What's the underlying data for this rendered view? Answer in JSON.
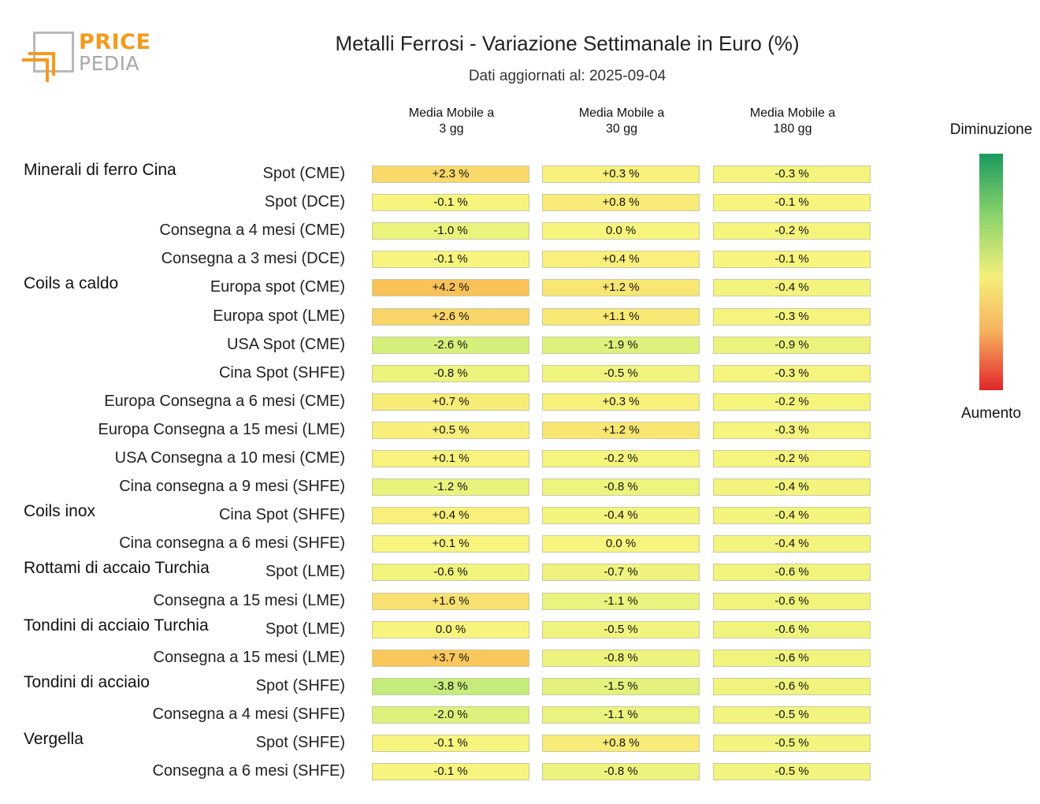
{
  "logo": {
    "word1": "PRICE",
    "word2": "PEDIA"
  },
  "title": "Metalli Ferrosi - Variazione Settimanale in Euro (%)",
  "subtitle": "Dati aggiornati al: 2025-09-04",
  "legend": {
    "top": "Diminuzione",
    "bottom": "Aumento",
    "colors": [
      "#1a9a5f",
      "#86d16a",
      "#f5f07a",
      "#f6b25e",
      "#e1262a"
    ]
  },
  "chart_data": {
    "type": "table",
    "title": "Metalli Ferrosi - Variazione Settimanale in Euro (%)",
    "columns": [
      "Media Mobile a\n3 gg",
      "Media Mobile a\n30 gg",
      "Media Mobile a\n180 gg"
    ],
    "groups": [
      {
        "name": "Minerali di ferro Cina",
        "rows": [
          {
            "label": "Spot (CME)",
            "values": [
              2.3,
              0.3,
              -0.3
            ]
          },
          {
            "label": "Spot (DCE)",
            "values": [
              -0.1,
              0.8,
              -0.1
            ]
          },
          {
            "label": "Consegna a 4 mesi (CME)",
            "values": [
              -1.0,
              0.0,
              -0.2
            ]
          },
          {
            "label": "Consegna a 3 mesi (DCE)",
            "values": [
              -0.1,
              0.4,
              -0.1
            ]
          }
        ]
      },
      {
        "name": "Coils a caldo",
        "rows": [
          {
            "label": "Europa spot (CME)",
            "values": [
              4.2,
              1.2,
              -0.4
            ]
          },
          {
            "label": "Europa spot (LME)",
            "values": [
              2.6,
              1.1,
              -0.3
            ]
          },
          {
            "label": "USA Spot (CME)",
            "values": [
              -2.6,
              -1.9,
              -0.9
            ]
          },
          {
            "label": "Cina Spot (SHFE)",
            "values": [
              -0.8,
              -0.5,
              -0.3
            ]
          },
          {
            "label": "Europa Consegna a 6 mesi (CME)",
            "values": [
              0.7,
              0.3,
              -0.2
            ]
          },
          {
            "label": "Europa Consegna a 15 mesi (LME)",
            "values": [
              0.5,
              1.2,
              -0.3
            ]
          },
          {
            "label": "USA Consegna a 10 mesi (CME)",
            "values": [
              0.1,
              -0.2,
              -0.2
            ]
          },
          {
            "label": "Cina consegna a 9 mesi (SHFE)",
            "values": [
              -1.2,
              -0.8,
              -0.4
            ]
          }
        ]
      },
      {
        "name": "Coils inox",
        "rows": [
          {
            "label": "Cina Spot (SHFE)",
            "values": [
              0.4,
              -0.4,
              -0.4
            ]
          },
          {
            "label": "Cina consegna a 6 mesi (SHFE)",
            "values": [
              0.1,
              0.0,
              -0.4
            ]
          }
        ]
      },
      {
        "name": "Rottami di accaio Turchia",
        "rows": [
          {
            "label": "Spot (LME)",
            "values": [
              -0.6,
              -0.7,
              -0.6
            ]
          },
          {
            "label": "Consegna a 15 mesi (LME)",
            "values": [
              1.6,
              -1.1,
              -0.6
            ]
          }
        ]
      },
      {
        "name": "Tondini di acciaio Turchia",
        "rows": [
          {
            "label": "Spot (LME)",
            "values": [
              0.0,
              -0.5,
              -0.6
            ]
          },
          {
            "label": "Consegna a 15 mesi (LME)",
            "values": [
              3.7,
              -0.8,
              -0.6
            ]
          }
        ]
      },
      {
        "name": "Tondini di acciaio",
        "rows": [
          {
            "label": "Spot (SHFE)",
            "values": [
              -3.8,
              -1.5,
              -0.6
            ]
          },
          {
            "label": "Consegna a 4 mesi (SHFE)",
            "values": [
              -2.0,
              -1.1,
              -0.5
            ]
          }
        ]
      },
      {
        "name": "Vergella",
        "rows": [
          {
            "label": "Spot (SHFE)",
            "values": [
              -0.1,
              0.8,
              -0.5
            ]
          },
          {
            "label": "Consegna a 6 mesi (SHFE)",
            "values": [
              -0.1,
              -0.8,
              -0.5
            ]
          }
        ]
      }
    ]
  }
}
